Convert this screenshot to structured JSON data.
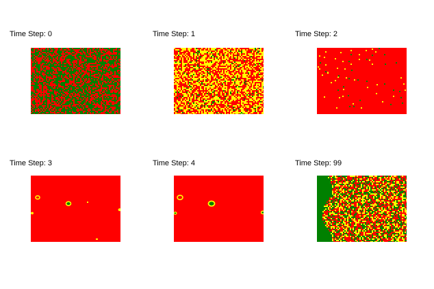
{
  "panels": [
    {
      "label": "Time Step: 0",
      "pattern": "mix-green"
    },
    {
      "label": "Time Step: 1",
      "pattern": "mix-yellow"
    },
    {
      "label": "Time Step: 2",
      "pattern": "red-sparse"
    },
    {
      "label": "Time Step: 3",
      "pattern": "red-rings"
    },
    {
      "label": "Time Step: 4",
      "pattern": "red-rings-2"
    },
    {
      "label": "Time Step: 99",
      "pattern": "late-mix"
    }
  ],
  "colors": {
    "red": "#ff0000",
    "green": "#008000",
    "yellow": "#ffff00",
    "background": "#ffffff"
  }
}
